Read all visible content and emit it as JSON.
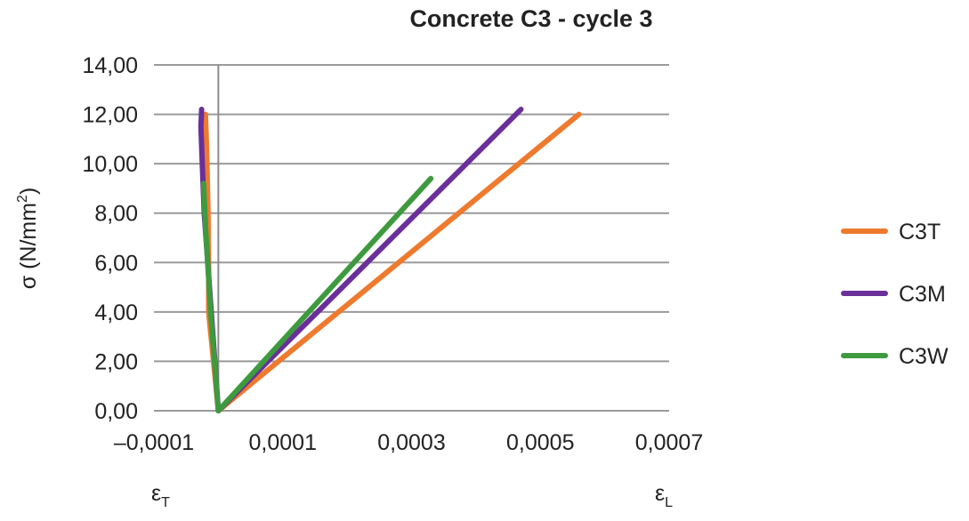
{
  "chart_data": {
    "type": "line",
    "title": "Concrete C3 - cycle 3",
    "ylabel": "σ (N/mm²)",
    "ylabel_main": "σ (N/mm",
    "ylabel_sup": "2",
    "ylabel_end": ")",
    "xlabel_left": {
      "main": "ε",
      "sub": "T"
    },
    "xlabel_right": {
      "main": "ε",
      "sub": "L"
    },
    "xlim": [
      -0.0001,
      0.0007
    ],
    "ylim": [
      0,
      14
    ],
    "x_ticks": [
      -0.0001,
      0.0001,
      0.0003,
      0.0005,
      0.0007
    ],
    "x_tick_labels": [
      "–0,0001",
      "0,0001",
      "0,0003",
      "0,0005",
      "0,0007"
    ],
    "y_ticks": [
      0,
      2,
      4,
      6,
      8,
      10,
      12,
      14
    ],
    "y_tick_labels": [
      "0,00",
      "2,00",
      "4,00",
      "6,00",
      "8,00",
      "10,00",
      "12,00",
      "14,00"
    ],
    "grid": "horizontal",
    "legend_position": "right",
    "series": [
      {
        "name": "C3T",
        "color": "#ee7a2e",
        "longitudinal": {
          "x": [
            0.0,
            0.00056
          ],
          "y": [
            0.0,
            12.0
          ]
        },
        "transverse": {
          "x": [
            0.0,
            -1.5e-05,
            -1.5e-05,
            -1.6e-05,
            -1.8e-05,
            -2e-05
          ],
          "y": [
            0.0,
            4.0,
            6.0,
            8.0,
            10.5,
            12.0
          ]
        }
      },
      {
        "name": "C3M",
        "color": "#6a2f9a",
        "longitudinal": {
          "x": [
            0.0,
            0.00047
          ],
          "y": [
            0.0,
            12.2
          ]
        },
        "transverse": {
          "x": [
            0.0,
            -2.2e-05,
            -2.5e-05,
            -2.7e-05,
            -2.6e-05
          ],
          "y": [
            0.0,
            8.0,
            10.0,
            11.5,
            12.2
          ]
        }
      },
      {
        "name": "C3W",
        "color": "#3e9a3e",
        "longitudinal": {
          "x": [
            0.0,
            0.00033
          ],
          "y": [
            0.0,
            9.4
          ]
        },
        "transverse": {
          "x": [
            0.0,
            -1.2e-05,
            -2e-05,
            -2.3e-05
          ],
          "y": [
            0.0,
            4.0,
            7.5,
            9.2
          ]
        }
      }
    ]
  }
}
